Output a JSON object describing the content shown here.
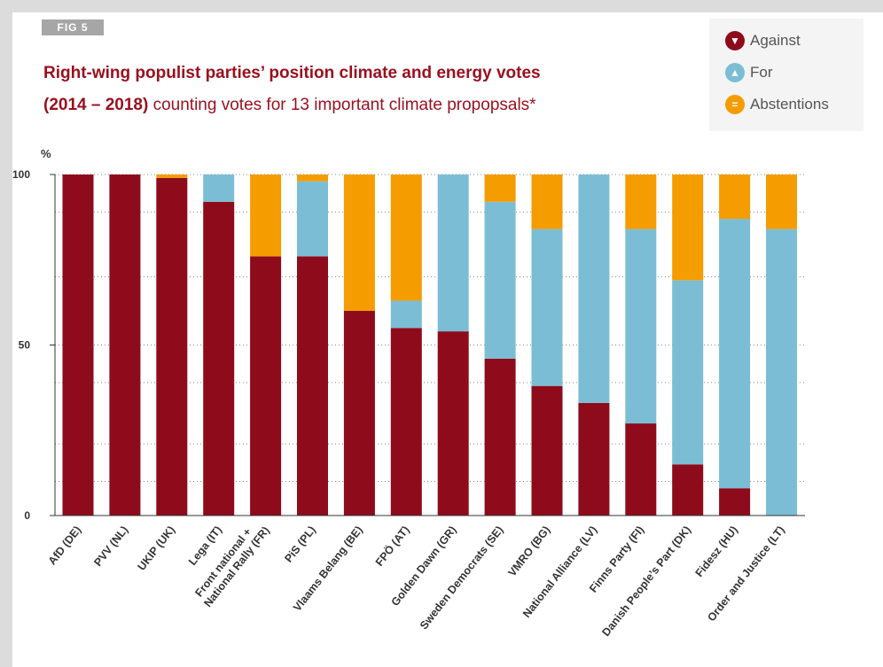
{
  "chart_data": {
    "type": "bar",
    "stacked": true,
    "fig_label": "FIG 5",
    "title": "Right-wing populist parties’ position climate and energy votes",
    "subtitle_bold": "(2014 – 2018)",
    "subtitle": "counting votes for 13 important climate propopsals*",
    "ylabel": "%",
    "ylim": [
      0,
      100
    ],
    "yticks": [
      0,
      50,
      100
    ],
    "categories": [
      "AfD (DE)",
      "PVV (NL)",
      "UKIP (UK)",
      "Lega (IT)",
      "Front national + National Rally (FR)",
      "PiS (PL)",
      "Vlaams Belang (BE)",
      "FPÖ (AT)",
      "Golden Dawn (GR)",
      "Sweden Democrats (SE)",
      "VMRO (BG)",
      "National Alliance (LV)",
      "Finns Party (FI)",
      "Danish People’s Part (DK)",
      "Fidesz (HU)",
      "Order and Justice (LT)"
    ],
    "series": [
      {
        "name": "Against",
        "color": "#8e0b1c",
        "icon": "thumbs-down-icon",
        "values": [
          100,
          100,
          99,
          92,
          76,
          76,
          60,
          55,
          54,
          46,
          38,
          33,
          27,
          15,
          8,
          0
        ]
      },
      {
        "name": "For",
        "color": "#7bbdd4",
        "icon": "thumbs-up-icon",
        "values": [
          0,
          0,
          0,
          8,
          0,
          22,
          0,
          8,
          46,
          46,
          46,
          67,
          57,
          54,
          79,
          84
        ]
      },
      {
        "name": "Abstentions",
        "color": "#f59c00",
        "icon": "equals-icon",
        "values": [
          0,
          0,
          1,
          0,
          24,
          2,
          40,
          37,
          0,
          8,
          16,
          0,
          16,
          31,
          13,
          16
        ]
      }
    ],
    "legend_position": "top-right"
  }
}
